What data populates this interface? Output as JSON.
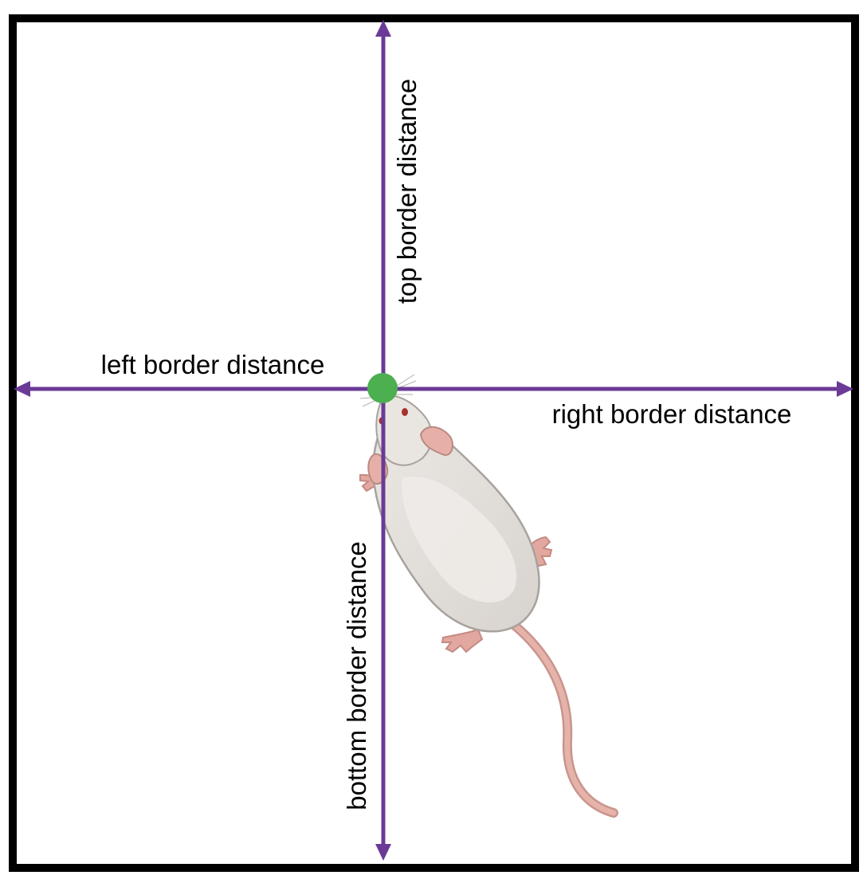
{
  "diagram": {
    "labels": {
      "top": "top border distance",
      "left": "left border distance",
      "right": "right border distance",
      "bottom": "bottom border distance"
    },
    "colors": {
      "arena_border": "#000000",
      "arrow": "#6b3a96",
      "nose_point": "#4caf50",
      "rat_body": "#e4e1dd",
      "rat_outline": "#a8a29c",
      "rat_skin": "#e2a8a0"
    },
    "icons": {
      "arena": "square-arena",
      "animal": "rat-top-view",
      "point": "nose-point-dot"
    }
  }
}
